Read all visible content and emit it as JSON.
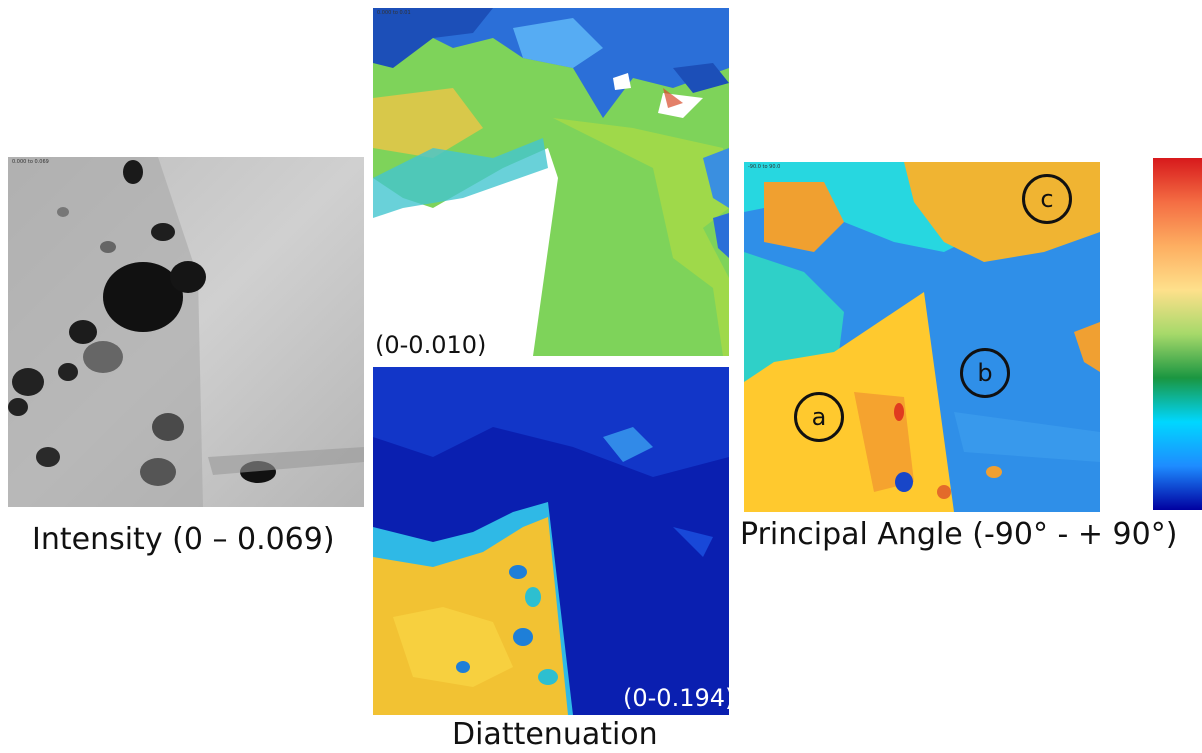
{
  "panels": {
    "intensity": {
      "caption": "Intensity (0 – 0.069)",
      "tiny_label": "0.000 to 0.069"
    },
    "retardance": {
      "range_label": "(0-0.010)",
      "tiny_label": "0.000 to 0.01"
    },
    "diattenuation": {
      "caption": "Diattenuation",
      "range_label": "(0-0.194)"
    },
    "principal_angle": {
      "caption": "Principal Angle (-90° - + 90°)",
      "tiny_label": "-90.0 to 90.0",
      "regions": [
        "a",
        "b",
        "c"
      ]
    }
  },
  "colorbar": {
    "stops": [
      "#d7191c",
      "#f46d43",
      "#fdae61",
      "#fee08b",
      "#a6d96a",
      "#1a9641",
      "#00d7ff",
      "#1e8cff",
      "#0000a0"
    ]
  }
}
